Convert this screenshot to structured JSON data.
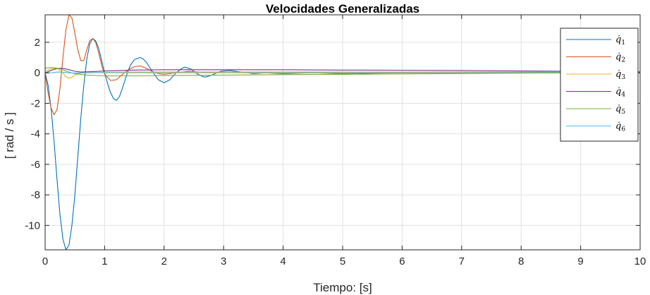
{
  "chart_data": {
    "type": "line",
    "title": "Velocidades Generalizadas",
    "xlabel": "Tiempo: [s]",
    "ylabel": "[ rad / s ]",
    "xlim": [
      0,
      10
    ],
    "ylim": [
      -11.6,
      3.8
    ],
    "xticks": [
      0,
      1,
      2,
      3,
      4,
      5,
      6,
      7,
      8,
      9,
      10
    ],
    "yticks": [
      2,
      0,
      -2,
      -4,
      -6,
      -8,
      -10
    ],
    "ytick_labels": [
      "2",
      "0",
      "-2",
      "-4",
      "-6",
      "-8",
      "-10"
    ],
    "grid": true,
    "legend_position": "top-right",
    "series": [
      {
        "name": "q̇1",
        "symbol": "q̇",
        "index": "1",
        "color": "#0072BD",
        "x": [
          0,
          0.05,
          0.1,
          0.15,
          0.2,
          0.25,
          0.3,
          0.35,
          0.4,
          0.45,
          0.5,
          0.55,
          0.6,
          0.65,
          0.7,
          0.75,
          0.8,
          0.85,
          0.9,
          0.95,
          1.0,
          1.05,
          1.1,
          1.15,
          1.2,
          1.25,
          1.3,
          1.35,
          1.4,
          1.45,
          1.5,
          1.55,
          1.6,
          1.65,
          1.7,
          1.8,
          1.9,
          2.0,
          2.1,
          2.2,
          2.3,
          2.35,
          2.45,
          2.55,
          2.65,
          2.7,
          2.8,
          2.95,
          3.1,
          3.3,
          3.5,
          3.7,
          4.0,
          4.5,
          5.0,
          6.0,
          7.0,
          8.0,
          9.0,
          10.0
        ],
        "y": [
          0.0,
          -0.8,
          -2.3,
          -4.5,
          -7.0,
          -9.3,
          -10.9,
          -11.6,
          -11.3,
          -10.0,
          -8.0,
          -5.5,
          -3.0,
          -0.8,
          0.9,
          1.9,
          2.25,
          2.1,
          1.6,
          0.8,
          0.0,
          -0.7,
          -1.3,
          -1.7,
          -1.8,
          -1.55,
          -1.0,
          -0.4,
          0.2,
          0.6,
          0.85,
          0.95,
          1.0,
          0.9,
          0.7,
          0.1,
          -0.45,
          -0.65,
          -0.45,
          0.0,
          0.3,
          0.38,
          0.25,
          -0.05,
          -0.25,
          -0.28,
          -0.15,
          0.1,
          0.15,
          0.05,
          -0.05,
          0.0,
          -0.05,
          0.0,
          -0.05,
          0.0,
          0.0,
          0.02,
          0.02,
          0.03
        ]
      },
      {
        "name": "q̇2",
        "symbol": "q̇",
        "index": "2",
        "color": "#D95319",
        "x": [
          0,
          0.05,
          0.1,
          0.15,
          0.2,
          0.25,
          0.3,
          0.35,
          0.4,
          0.45,
          0.5,
          0.55,
          0.6,
          0.65,
          0.7,
          0.75,
          0.8,
          0.85,
          0.9,
          0.95,
          1.0,
          1.1,
          1.2,
          1.3,
          1.4,
          1.5,
          1.6,
          1.7,
          1.8,
          1.9,
          2.0,
          2.2,
          2.4,
          2.6,
          2.8,
          3.0,
          3.5,
          4.0,
          5.0,
          6.0,
          7.0,
          8.0,
          9.0,
          10.0
        ],
        "y": [
          0.0,
          -1.3,
          -2.3,
          -2.75,
          -2.4,
          -1.0,
          1.0,
          2.8,
          3.8,
          3.6,
          2.6,
          1.5,
          0.8,
          0.8,
          1.5,
          2.1,
          2.25,
          2.0,
          1.3,
          0.5,
          -0.1,
          -0.5,
          -0.45,
          -0.1,
          0.2,
          0.4,
          0.45,
          0.3,
          0.1,
          -0.05,
          -0.1,
          0.0,
          0.1,
          0.05,
          0.0,
          0.05,
          0.05,
          0.05,
          0.05,
          0.05,
          0.05,
          0.05,
          0.05,
          0.05
        ]
      },
      {
        "name": "q̇3",
        "symbol": "q̇",
        "index": "3",
        "color": "#EDB120",
        "x": [
          0,
          0.1,
          0.2,
          0.3,
          0.35,
          0.4,
          0.45,
          0.5,
          0.6,
          0.8,
          1.0,
          1.5,
          2.0,
          3.0,
          4.0,
          5.0,
          6.0,
          7.0,
          8.0,
          9.0,
          10.0
        ],
        "y": [
          0.1,
          0.25,
          0.3,
          0.0,
          -0.25,
          -0.35,
          -0.3,
          -0.15,
          0.0,
          0.02,
          0.0,
          0.0,
          0.0,
          0.0,
          0.0,
          0.0,
          0.0,
          0.0,
          0.0,
          0.0,
          0.0
        ]
      },
      {
        "name": "q̇4",
        "symbol": "q̇",
        "index": "4",
        "color": "#7E2F8E",
        "x": [
          0,
          0.1,
          0.2,
          0.3,
          0.4,
          0.5,
          0.6,
          0.8,
          1.0,
          1.5,
          2.0,
          3.0,
          4.0,
          5.0,
          6.0,
          7.0,
          8.0,
          9.0,
          10.0
        ],
        "y": [
          0.0,
          0.15,
          0.28,
          0.3,
          0.2,
          0.1,
          0.05,
          0.08,
          0.12,
          0.18,
          0.2,
          0.2,
          0.2,
          0.18,
          0.17,
          0.15,
          0.12,
          0.1,
          0.08
        ]
      },
      {
        "name": "q̇5",
        "symbol": "q̇",
        "index": "5",
        "color": "#77AC30",
        "x": [
          0,
          0.1,
          0.2,
          0.3,
          0.4,
          0.5,
          0.7,
          1.0,
          1.5,
          2.0,
          3.0,
          4.0,
          5.0,
          6.0,
          7.0,
          8.0,
          9.0,
          10.0
        ],
        "y": [
          0.3,
          0.35,
          0.3,
          0.2,
          0.05,
          -0.05,
          -0.15,
          -0.2,
          -0.2,
          -0.18,
          -0.15,
          -0.12,
          -0.1,
          -0.07,
          -0.05,
          -0.02,
          0.0,
          0.0
        ]
      },
      {
        "name": "q̇6",
        "symbol": "q̇",
        "index": "6",
        "color": "#4DBEEE",
        "x": [
          0,
          0.1,
          0.2,
          0.3,
          0.4,
          0.5,
          0.7,
          1.0,
          1.5,
          2.0,
          3.0,
          4.0,
          5.0,
          6.0,
          7.0,
          8.0,
          9.0,
          10.0
        ],
        "y": [
          0.0,
          0.0,
          0.05,
          0.05,
          0.0,
          -0.02,
          0.0,
          0.03,
          0.05,
          0.05,
          0.05,
          0.05,
          0.05,
          0.05,
          0.05,
          0.05,
          0.05,
          0.05
        ]
      }
    ]
  }
}
